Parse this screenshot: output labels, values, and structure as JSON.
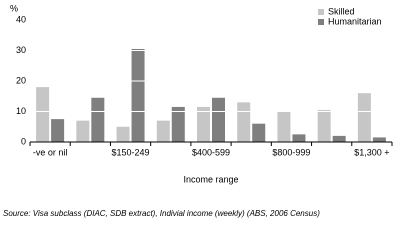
{
  "chart_data": {
    "type": "bar",
    "ylabel": "%",
    "xlabel": "Income range",
    "source": "Source: Visa subclass (DIAC, SDB extract), Indivial income (weekly) (ABS, 2006 Census)",
    "categories": [
      "-ve or nil",
      null,
      "$150-249",
      null,
      "$400-599",
      null,
      "$800-999",
      null,
      "$1,300 +"
    ],
    "series": [
      {
        "name": "Skilled",
        "color": "#c6c6c6",
        "values": [
          18,
          7,
          5,
          7,
          11.5,
          13,
          10,
          10.5,
          16
        ]
      },
      {
        "name": "Humanitarian",
        "color": "#7f7f7f",
        "values": [
          7.5,
          14.5,
          30.5,
          11.5,
          14.5,
          6,
          2.5,
          2,
          1.5
        ]
      }
    ],
    "ylim": [
      0,
      40
    ],
    "yticks": [
      0,
      10,
      20,
      30,
      40
    ],
    "grid": true,
    "legend": "top-right"
  }
}
